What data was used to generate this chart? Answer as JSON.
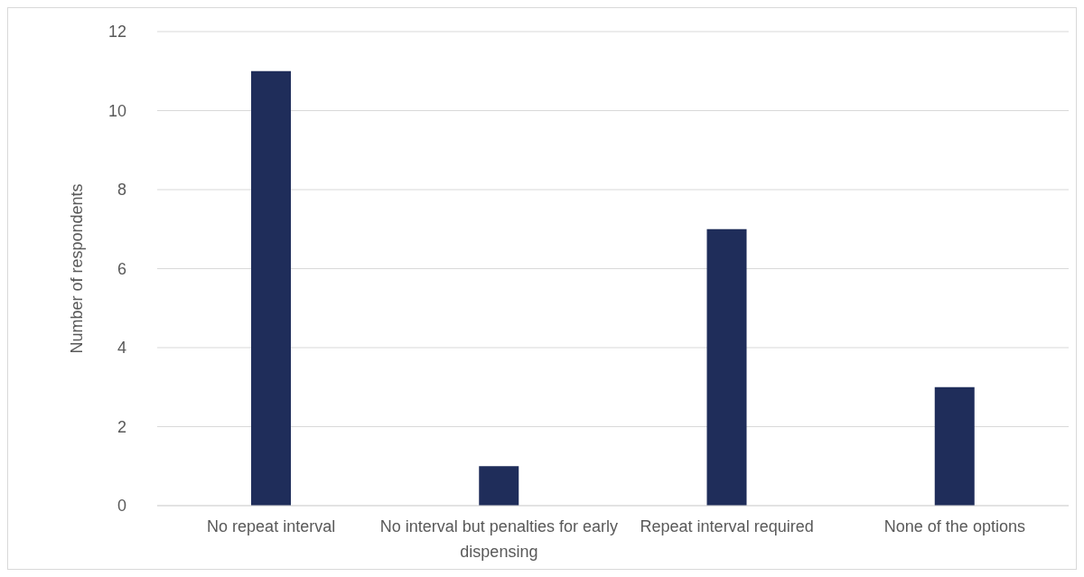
{
  "chart_data": {
    "type": "bar",
    "ylabel": "Number of respondents",
    "categories": [
      "No repeat interval",
      "No interval but penalties for early dispensing",
      "Repeat interval required",
      "None of the options"
    ],
    "values": [
      11,
      1,
      7,
      3
    ],
    "color": "#1f2d5a",
    "ylim": [
      0,
      12
    ],
    "yticks": [
      0,
      2,
      4,
      6,
      8,
      10,
      12
    ],
    "grid": "y"
  }
}
